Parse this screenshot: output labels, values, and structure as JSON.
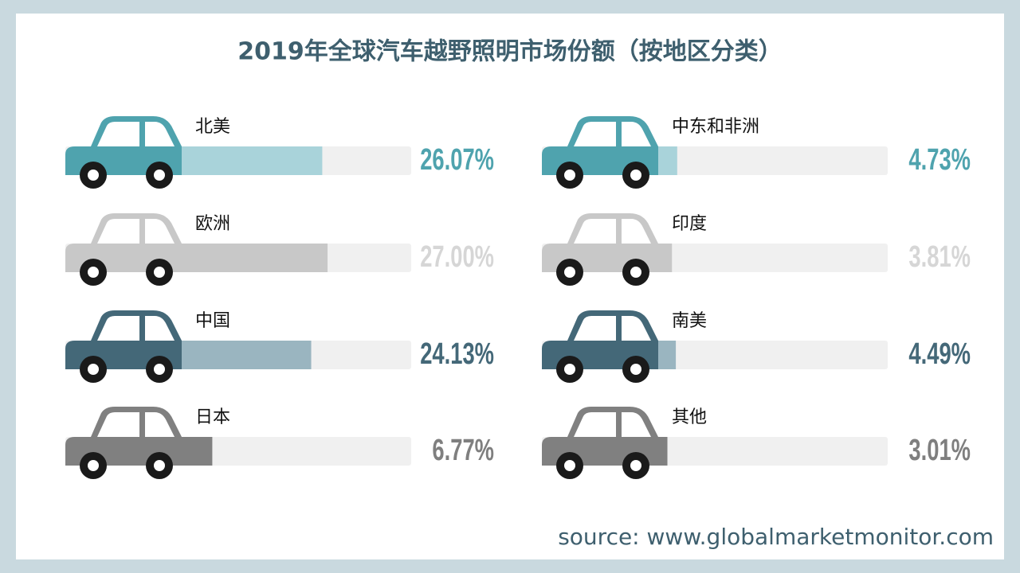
{
  "chart_data": {
    "type": "bar",
    "title": "2019年全球汽车越野照明市场份额（按地区分类）",
    "categories": [
      "北美",
      "欧洲",
      "中国",
      "日本",
      "中东和非洲",
      "印度",
      "南美",
      "其他"
    ],
    "values": [
      26.07,
      27.0,
      24.13,
      6.77,
      4.73,
      3.81,
      4.49,
      3.01
    ],
    "value_labels": [
      "26.07%",
      "27.00%",
      "24.13%",
      "6.77%",
      "4.73%",
      "3.81%",
      "4.49%",
      "3.01%"
    ],
    "colors": [
      "#4fa3ae",
      "#c8c8c8",
      "#446878",
      "#808080",
      "#4fa3ae",
      "#c8c8c8",
      "#446878",
      "#808080"
    ],
    "bar_colors": [
      "#a9d3da",
      "#c8c8c8",
      "#9ab5c0",
      "#808080",
      "#a9d3da",
      "#c8c8c8",
      "#9ab5c0",
      "#808080"
    ],
    "label_colors": [
      "#4fa3ae",
      "#d6d6d6",
      "#446878",
      "#7f7f7f",
      "#4fa3ae",
      "#d6d6d6",
      "#446878",
      "#7f7f7f"
    ],
    "xlim": [
      0,
      41.5
    ],
    "source": "source: www.globalmarketmonitor.com"
  }
}
